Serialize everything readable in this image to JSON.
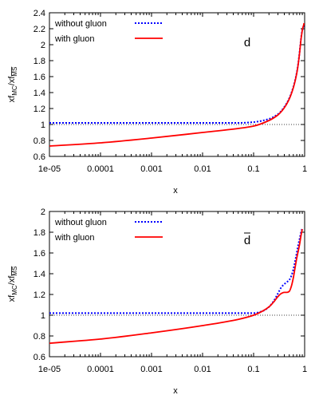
{
  "chart_data": [
    {
      "type": "line",
      "panel_label": "d",
      "xlabel": "x",
      "ylabel": "xf_MC/xf_MS-bar",
      "x_scale": "log",
      "xlim": [
        1e-05,
        1
      ],
      "ylim": [
        0.6,
        2.4
      ],
      "x_ticks": [
        1e-05,
        0.0001,
        0.001,
        0.01,
        0.1,
        1
      ],
      "x_tick_labels": [
        "1e-05",
        "0.0001",
        "0.001",
        "0.01",
        "0.1",
        "1"
      ],
      "y_ticks": [
        0.6,
        0.8,
        1,
        1.2,
        1.4,
        1.6,
        1.8,
        2,
        2.2,
        2.4
      ],
      "y_tick_labels": [
        "0.6",
        "0.8",
        "1",
        "1.2",
        "1.4",
        "1.6",
        "1.8",
        "2",
        "2.2",
        "2.4"
      ],
      "reference_line": 1,
      "legend_position": "top-left",
      "series": [
        {
          "name": "without gluon",
          "color": "#0000ff",
          "style": "dotted",
          "x": [
            1e-05,
            0.0001,
            0.001,
            0.01,
            0.05,
            0.1,
            0.2,
            0.3,
            0.4,
            0.5,
            0.6,
            0.7,
            0.75,
            0.8,
            0.85,
            0.88,
            0.9,
            0.92,
            0.94,
            0.96,
            0.97
          ],
          "y": [
            1.02,
            1.02,
            1.02,
            1.02,
            1.02,
            1.03,
            1.07,
            1.13,
            1.22,
            1.33,
            1.47,
            1.65,
            1.77,
            1.92,
            2.08,
            2.15,
            2.18,
            2.2,
            2.22,
            2.24,
            2.25
          ]
        },
        {
          "name": "with gluon",
          "color": "#ff0000",
          "style": "solid",
          "x": [
            1e-05,
            0.0001,
            0.001,
            0.01,
            0.05,
            0.1,
            0.2,
            0.3,
            0.4,
            0.5,
            0.6,
            0.7,
            0.75,
            0.8,
            0.85,
            0.88,
            0.9,
            0.92,
            0.94,
            0.96,
            0.97
          ],
          "y": [
            0.73,
            0.77,
            0.83,
            0.9,
            0.95,
            0.98,
            1.05,
            1.12,
            1.21,
            1.32,
            1.46,
            1.64,
            1.76,
            1.91,
            2.07,
            2.14,
            2.18,
            2.21,
            2.23,
            2.25,
            2.27
          ]
        }
      ]
    },
    {
      "type": "line",
      "panel_label": "d-bar",
      "xlabel": "x",
      "ylabel": "xf_MC/xf_MS-bar",
      "x_scale": "log",
      "xlim": [
        1e-05,
        1
      ],
      "ylim": [
        0.6,
        2
      ],
      "x_ticks": [
        1e-05,
        0.0001,
        0.001,
        0.01,
        0.1,
        1
      ],
      "x_tick_labels": [
        "1e-05",
        "0.0001",
        "0.001",
        "0.01",
        "0.1",
        "1"
      ],
      "y_ticks": [
        0.6,
        0.8,
        1,
        1.2,
        1.4,
        1.6,
        1.8,
        2
      ],
      "y_tick_labels": [
        "0.6",
        "0.8",
        "1",
        "1.2",
        "1.4",
        "1.6",
        "1.8",
        "2"
      ],
      "reference_line": 1,
      "legend_position": "top-left",
      "series": [
        {
          "name": "without gluon",
          "color": "#0000ff",
          "style": "dotted",
          "x": [
            1e-05,
            0.0001,
            0.001,
            0.01,
            0.05,
            0.1,
            0.15,
            0.2,
            0.25,
            0.3,
            0.35,
            0.4,
            0.45,
            0.5,
            0.55,
            0.6,
            0.65,
            0.7,
            0.75,
            0.8,
            0.85,
            0.9
          ],
          "y": [
            1.02,
            1.02,
            1.02,
            1.02,
            1.02,
            1.02,
            1.04,
            1.08,
            1.14,
            1.21,
            1.27,
            1.3,
            1.32,
            1.34,
            1.38,
            1.44,
            1.52,
            1.6,
            1.68,
            1.74,
            1.8,
            1.84
          ]
        },
        {
          "name": "with gluon",
          "color": "#ff0000",
          "style": "solid",
          "x": [
            1e-05,
            0.0001,
            0.001,
            0.01,
            0.05,
            0.1,
            0.15,
            0.2,
            0.25,
            0.3,
            0.35,
            0.4,
            0.45,
            0.5,
            0.55,
            0.6,
            0.65,
            0.7,
            0.75,
            0.8,
            0.85,
            0.9
          ],
          "y": [
            0.73,
            0.77,
            0.83,
            0.9,
            0.96,
            1.0,
            1.04,
            1.08,
            1.13,
            1.18,
            1.21,
            1.22,
            1.22,
            1.23,
            1.28,
            1.36,
            1.46,
            1.55,
            1.62,
            1.69,
            1.77,
            1.83
          ]
        }
      ]
    }
  ]
}
